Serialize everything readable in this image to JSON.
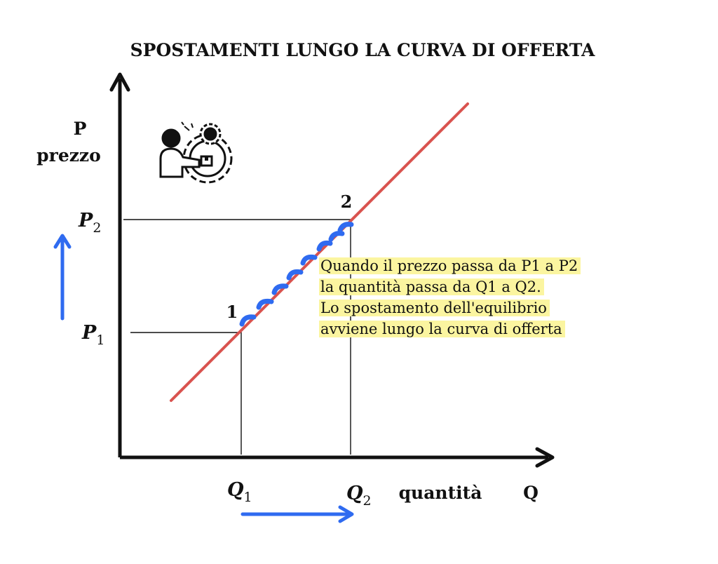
{
  "title": "SPOSTAMENTI LUNGO LA CURVA DI OFFERTA",
  "y_axis": {
    "symbol": "P",
    "name": "prezzo"
  },
  "x_axis": {
    "symbol": "Q",
    "name": "quantità"
  },
  "price_levels": [
    {
      "letter": "P",
      "sub": "2"
    },
    {
      "letter": "P",
      "sub": "1"
    }
  ],
  "quantity_levels": [
    {
      "letter": "Q",
      "sub": "1"
    },
    {
      "letter": "Q",
      "sub": "2"
    }
  ],
  "points": [
    {
      "label": "1"
    },
    {
      "label": "2"
    }
  ],
  "note_lines": [
    "Quando il prezzo passa da P1 a P2",
    "la quantità passa da Q1 a Q2.",
    "Lo spostamento dell'equilibrio",
    "avviene lungo la curva di offerta"
  ],
  "colors": {
    "supply_curve": "#d9534f",
    "arrows": "#2f6bf0",
    "note_highlight": "#fbf5a0",
    "axes": "#111111"
  },
  "icon": "producer-with-gears-icon"
}
